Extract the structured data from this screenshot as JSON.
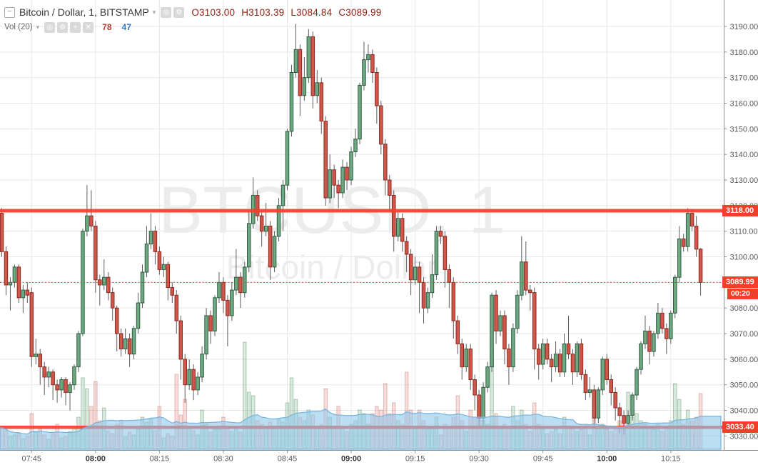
{
  "legend": {
    "collapse_glyph": "−",
    "symbol_title": "Bitcoin / Dollar, 1, BITSTAMP",
    "caret": "▾",
    "icons": {
      "visibility": "◎",
      "settings": "⚙",
      "add": "+",
      "remove": "✕"
    },
    "ohlc": {
      "o": "O3103.00",
      "h": "H3103.39",
      "l": "L3084.84",
      "c": "C3089.99"
    },
    "indicator": {
      "name": "Vol (20)",
      "current": "78",
      "ma": "47"
    }
  },
  "watermark": {
    "line1": "BTCUSD, 1",
    "line2": "Bitcoin / Dollar"
  },
  "colors": {
    "up_fill": "#6fa982",
    "up_stroke": "#2e5c41",
    "down_fill": "#d0574b",
    "down_stroke": "#8c2a20",
    "wick": "#5c5c5c",
    "level_red": "#f23f2c",
    "grid": "#e7e7e7",
    "axis_text": "#595959",
    "axis_text_bold": "#333333",
    "axis_line": "#8c8c8c",
    "vol_up": "rgba(103,169,120,0.25)",
    "vol_up_stroke": "rgba(90,150,105,0.45)",
    "vol_down": "rgba(215,84,74,0.20)",
    "vol_down_stroke": "rgba(200,90,80,0.38)",
    "ma_fill": "rgba(144,200,235,0.60)",
    "ma_stroke": "#7ab5e0",
    "watermark": "#ececec"
  },
  "chart_data": {
    "type": "candlestick",
    "symbol": "BTCUSD",
    "interval": "1",
    "exchange": "BITSTAMP",
    "start_time": "07:38",
    "interval_min": 1,
    "y_axis": {
      "min": 3024,
      "max": 3200,
      "tick_interval": 10,
      "ticks": [
        3190,
        3180,
        3170,
        3160,
        3150,
        3140,
        3130,
        3120,
        3110,
        3100,
        3090,
        3080,
        3070,
        3060,
        3050,
        3040,
        3030
      ]
    },
    "x_axis": {
      "ticks": [
        {
          "label": "07:45",
          "index": 7,
          "bold": false
        },
        {
          "label": "08:00",
          "index": 22,
          "bold": true
        },
        {
          "label": "08:15",
          "index": 37,
          "bold": false
        },
        {
          "label": "08:30",
          "index": 52,
          "bold": false
        },
        {
          "label": "08:45",
          "index": 67,
          "bold": false
        },
        {
          "label": "09:00",
          "index": 82,
          "bold": true
        },
        {
          "label": "09:15",
          "index": 97,
          "bold": false
        },
        {
          "label": "09:30",
          "index": 112,
          "bold": false
        },
        {
          "label": "09:45",
          "index": 127,
          "bold": false
        },
        {
          "label": "10:00",
          "index": 142,
          "bold": true
        },
        {
          "label": "10:15",
          "index": 157,
          "bold": false
        }
      ]
    },
    "price_lines": [
      {
        "value": 3118.0,
        "label": "3118.00",
        "thickness": 5
      },
      {
        "value": 3033.4,
        "label": "3033.40",
        "thickness": 4.5
      }
    ],
    "last_price": {
      "value": 3089.99,
      "label": "3089.99",
      "countdown": "00:20",
      "direction": "down"
    },
    "volume_ma_period": 20,
    "candles": [
      [
        3117,
        3119,
        3100,
        3102,
        30
      ],
      [
        3102,
        3104,
        3085,
        3089,
        26
      ],
      [
        3089,
        3092,
        3079,
        3090,
        18
      ],
      [
        3090,
        3097,
        3088,
        3096,
        20
      ],
      [
        3096,
        3097,
        3082,
        3084,
        22
      ],
      [
        3084,
        3089,
        3078,
        3087,
        15
      ],
      [
        3087,
        3090,
        3082,
        3085,
        18
      ],
      [
        3086,
        3088,
        3057,
        3061,
        50
      ],
      [
        3061,
        3068,
        3058,
        3062,
        24
      ],
      [
        3062,
        3064,
        3050,
        3057,
        28
      ],
      [
        3057,
        3059,
        3046,
        3053,
        20
      ],
      [
        3053,
        3057,
        3049,
        3055,
        14
      ],
      [
        3055,
        3056,
        3044,
        3050,
        22
      ],
      [
        3050,
        3052,
        3043,
        3048,
        35
      ],
      [
        3048,
        3053,
        3045,
        3052,
        16
      ],
      [
        3052,
        3053,
        3042,
        3047,
        18
      ],
      [
        3047,
        3051,
        3040,
        3050,
        25
      ],
      [
        3050,
        3058,
        3048,
        3057,
        30
      ],
      [
        3057,
        3071,
        3055,
        3070,
        45
      ],
      [
        3070,
        3111,
        3069,
        3110,
        100
      ],
      [
        3110,
        3128,
        3108,
        3116,
        85
      ],
      [
        3116,
        3126,
        3110,
        3112,
        60
      ],
      [
        3112,
        3114,
        3086,
        3091,
        95
      ],
      [
        3091,
        3093,
        3081,
        3089,
        40
      ],
      [
        3089,
        3099,
        3087,
        3092,
        58
      ],
      [
        3092,
        3094,
        3083,
        3086,
        25
      ],
      [
        3086,
        3088,
        3075,
        3080,
        22
      ],
      [
        3080,
        3081,
        3063,
        3070,
        35
      ],
      [
        3070,
        3072,
        3061,
        3064,
        40
      ],
      [
        3064,
        3072,
        3062,
        3068,
        18
      ],
      [
        3068,
        3070,
        3057,
        3062,
        24
      ],
      [
        3062,
        3073,
        3060,
        3072,
        20
      ],
      [
        3072,
        3086,
        3070,
        3082,
        28
      ],
      [
        3082,
        3097,
        3080,
        3094,
        45
      ],
      [
        3094,
        3112,
        3092,
        3105,
        38
      ],
      [
        3105,
        3117,
        3103,
        3110,
        42
      ],
      [
        3110,
        3112,
        3097,
        3102,
        26
      ],
      [
        3102,
        3104,
        3093,
        3095,
        60
      ],
      [
        3095,
        3100,
        3092,
        3097,
        16
      ],
      [
        3097,
        3098,
        3083,
        3088,
        22
      ],
      [
        3088,
        3090,
        3082,
        3085,
        18
      ],
      [
        3085,
        3087,
        3070,
        3075,
        105
      ],
      [
        3075,
        3077,
        3052,
        3060,
        48
      ],
      [
        3060,
        3062,
        3043,
        3050,
        70
      ],
      [
        3050,
        3060,
        3048,
        3056,
        30
      ],
      [
        3056,
        3058,
        3044,
        3048,
        26
      ],
      [
        3048,
        3055,
        3046,
        3053,
        20
      ],
      [
        3053,
        3065,
        3051,
        3062,
        55
      ],
      [
        3062,
        3080,
        3060,
        3077,
        35
      ],
      [
        3077,
        3079,
        3066,
        3071,
        24
      ],
      [
        3071,
        3085,
        3069,
        3084,
        28
      ],
      [
        3084,
        3094,
        3082,
        3090,
        28
      ],
      [
        3090,
        3092,
        3078,
        3083,
        45
      ],
      [
        3083,
        3085,
        3065,
        3077,
        30
      ],
      [
        3077,
        3090,
        3075,
        3087,
        25
      ],
      [
        3087,
        3103,
        3085,
        3092,
        32
      ],
      [
        3092,
        3094,
        3080,
        3086,
        24
      ],
      [
        3086,
        3098,
        3084,
        3096,
        150
      ],
      [
        3096,
        3118,
        3094,
        3113,
        80
      ],
      [
        3113,
        3131,
        3111,
        3124,
        75
      ],
      [
        3124,
        3126,
        3114,
        3116,
        40
      ],
      [
        3116,
        3118,
        3104,
        3110,
        35
      ],
      [
        3110,
        3121,
        3108,
        3112,
        30
      ],
      [
        3112,
        3114,
        3091,
        3096,
        38
      ],
      [
        3096,
        3110,
        3094,
        3108,
        30
      ],
      [
        3108,
        3123,
        3106,
        3120,
        42
      ],
      [
        3120,
        3130,
        3110,
        3128,
        38
      ],
      [
        3128,
        3150,
        3126,
        3149,
        65
      ],
      [
        3149,
        3175,
        3147,
        3172,
        100
      ],
      [
        3172,
        3191,
        3170,
        3181,
        70
      ],
      [
        3181,
        3183,
        3155,
        3163,
        45
      ],
      [
        3163,
        3178,
        3161,
        3170,
        40
      ],
      [
        3170,
        3189,
        3168,
        3186,
        55
      ],
      [
        3186,
        3188,
        3158,
        3163,
        48
      ],
      [
        3163,
        3173,
        3160,
        3168,
        30
      ],
      [
        3168,
        3170,
        3148,
        3153,
        35
      ],
      [
        3153,
        3155,
        3120,
        3123,
        85
      ],
      [
        3123,
        3140,
        3121,
        3134,
        45
      ],
      [
        3134,
        3136,
        3123,
        3128,
        30
      ],
      [
        3128,
        3130,
        3119,
        3125,
        60
      ],
      [
        3125,
        3138,
        3123,
        3135,
        32
      ],
      [
        3135,
        3137,
        3126,
        3130,
        25
      ],
      [
        3130,
        3143,
        3128,
        3141,
        35
      ],
      [
        3141,
        3150,
        3139,
        3146,
        40
      ],
      [
        3146,
        3168,
        3144,
        3167,
        55
      ],
      [
        3167,
        3184,
        3165,
        3177,
        50
      ],
      [
        3177,
        3183,
        3172,
        3179,
        35
      ],
      [
        3179,
        3181,
        3168,
        3172,
        50
      ],
      [
        3172,
        3174,
        3152,
        3159,
        60
      ],
      [
        3159,
        3161,
        3140,
        3144,
        55
      ],
      [
        3144,
        3146,
        3124,
        3130,
        92
      ],
      [
        3130,
        3132,
        3118,
        3124,
        50
      ],
      [
        3124,
        3126,
        3102,
        3108,
        65
      ],
      [
        3108,
        3118,
        3106,
        3115,
        40
      ],
      [
        3115,
        3117,
        3102,
        3106,
        35
      ],
      [
        3106,
        3108,
        3094,
        3101,
        108
      ],
      [
        3101,
        3103,
        3085,
        3091,
        55
      ],
      [
        3091,
        3100,
        3089,
        3096,
        30
      ],
      [
        3096,
        3098,
        3078,
        3090,
        55
      ],
      [
        3090,
        3092,
        3074,
        3080,
        40
      ],
      [
        3080,
        3088,
        3078,
        3086,
        28
      ],
      [
        3086,
        3101,
        3084,
        3093,
        30
      ],
      [
        3093,
        3112,
        3091,
        3110,
        45
      ],
      [
        3110,
        3112,
        3105,
        3108,
        20
      ],
      [
        3108,
        3110,
        3088,
        3095,
        35
      ],
      [
        3095,
        3097,
        3080,
        3090,
        30
      ],
      [
        3090,
        3092,
        3068,
        3075,
        45
      ],
      [
        3075,
        3077,
        3062,
        3066,
        75
      ],
      [
        3066,
        3068,
        3052,
        3057,
        40
      ],
      [
        3057,
        3066,
        3055,
        3064,
        25
      ],
      [
        3064,
        3066,
        3048,
        3052,
        55
      ],
      [
        3052,
        3054,
        3040,
        3046,
        45
      ],
      [
        3046,
        3048,
        3033.5,
        3037,
        65
      ],
      [
        3037,
        3051,
        3034,
        3049,
        40
      ],
      [
        3049,
        3059,
        3047,
        3057,
        35
      ],
      [
        3057,
        3086,
        3055,
        3085,
        137
      ],
      [
        3085,
        3087,
        3066,
        3071,
        50
      ],
      [
        3071,
        3079,
        3069,
        3077,
        30
      ],
      [
        3077,
        3079,
        3058,
        3064,
        35
      ],
      [
        3064,
        3066,
        3050,
        3057,
        30
      ],
      [
        3057,
        3074,
        3055,
        3072,
        60
      ],
      [
        3072,
        3087,
        3070,
        3085,
        40
      ],
      [
        3085,
        3108,
        3083,
        3098,
        55
      ],
      [
        3098,
        3106,
        3085,
        3087,
        35
      ],
      [
        3087,
        3089,
        3079,
        3086,
        25
      ],
      [
        3086,
        3088,
        3056,
        3064,
        65
      ],
      [
        3064,
        3066,
        3052,
        3058,
        35
      ],
      [
        3058,
        3068,
        3056,
        3066,
        28
      ],
      [
        3066,
        3068,
        3058,
        3060,
        22
      ],
      [
        3060,
        3062,
        3051,
        3057,
        25
      ],
      [
        3057,
        3067,
        3055,
        3062,
        28
      ],
      [
        3062,
        3064,
        3053,
        3055,
        22
      ],
      [
        3055,
        3070,
        3053,
        3066,
        45
      ],
      [
        3066,
        3077,
        3060,
        3062,
        30
      ],
      [
        3062,
        3064,
        3050,
        3055,
        32
      ],
      [
        3055,
        3067,
        3053,
        3066,
        25
      ],
      [
        3066,
        3068,
        3052,
        3054,
        28
      ],
      [
        3054,
        3056,
        3044,
        3047,
        35
      ],
      [
        3047,
        3053,
        3045,
        3048,
        20
      ],
      [
        3048,
        3050,
        3034,
        3037,
        60
      ],
      [
        3037,
        3049,
        3035,
        3048,
        30
      ],
      [
        3048,
        3061,
        3046,
        3060,
        35
      ],
      [
        3060,
        3062,
        3050,
        3052,
        28
      ],
      [
        3052,
        3054,
        3042,
        3047,
        25
      ],
      [
        3047,
        3049,
        3036,
        3041,
        30
      ],
      [
        3041,
        3043,
        3031,
        3038,
        40
      ],
      [
        3038,
        3040,
        3030.5,
        3035,
        35
      ],
      [
        3035,
        3040,
        3033,
        3038,
        80
      ],
      [
        3038,
        3047,
        3036,
        3046,
        45
      ],
      [
        3046,
        3057,
        3044,
        3056,
        50
      ],
      [
        3056,
        3067,
        3054,
        3066,
        40
      ],
      [
        3066,
        3077,
        3064,
        3071,
        35
      ],
      [
        3071,
        3073,
        3058,
        3063,
        30
      ],
      [
        3063,
        3071,
        3061,
        3070,
        28
      ],
      [
        3070,
        3082,
        3068,
        3078,
        35
      ],
      [
        3078,
        3080,
        3070,
        3072,
        25
      ],
      [
        3072,
        3074,
        3062,
        3068,
        30
      ],
      [
        3068,
        3079,
        3066,
        3078,
        40
      ],
      [
        3078,
        3093,
        3076,
        3092,
        92
      ],
      [
        3092,
        3112,
        3090,
        3107,
        70
      ],
      [
        3107,
        3109,
        3102,
        3104,
        35
      ],
      [
        3104,
        3119,
        3102,
        3117,
        55
      ],
      [
        3117,
        3118.5,
        3110,
        3112,
        40
      ],
      [
        3112,
        3116,
        3100,
        3103,
        45
      ],
      [
        3103,
        3103.39,
        3084.84,
        3089.99,
        78
      ]
    ]
  }
}
